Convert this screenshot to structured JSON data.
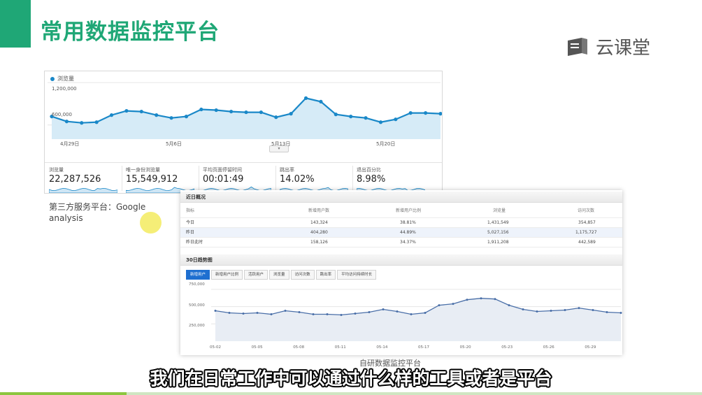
{
  "slide": {
    "title": "常用数据监控平台",
    "brand": "云课堂"
  },
  "ga": {
    "legend": "浏览量",
    "y_ticks": [
      "1,200,000",
      "600,000"
    ],
    "x_ticks": [
      "4月29日",
      "5月6日",
      "5月13日",
      "5月20日"
    ],
    "metrics": [
      {
        "label": "浏览量",
        "value": "22,287,526"
      },
      {
        "label": "唯一身份浏览量",
        "value": "15,549,912"
      },
      {
        "label": "平均页面停留时间",
        "value": "00:01:49"
      },
      {
        "label": "跳出率",
        "value": "14.02%"
      },
      {
        "label": "退出百分比",
        "value": "8.98%"
      }
    ],
    "caption_line1": "第三方服务平台：Google",
    "caption_line2": "analysis",
    "colors": {
      "line": "#1a88c8",
      "fill": "#d6ebf7"
    }
  },
  "ga_chart_data": {
    "type": "line",
    "xlabel": "",
    "ylabel": "",
    "ylim": [
      400000,
      1300000
    ],
    "x": [
      "4月29日",
      "4月30日",
      "5月1日",
      "5月2日",
      "5月3日",
      "5月4日",
      "5月5日",
      "5月6日",
      "5月7日",
      "5月8日",
      "5月9日",
      "5月10日",
      "5月11日",
      "5月12日",
      "5月13日",
      "5月14日",
      "5月15日",
      "5月16日",
      "5月17日",
      "5月18日",
      "5月19日",
      "5月20日",
      "5月21日",
      "5月22日",
      "5月23日",
      "5月24日",
      "5月25日"
    ],
    "series": [
      {
        "values": [
          720000,
          650000,
          630000,
          640000,
          740000,
          800000,
          790000,
          740000,
          700000,
          720000,
          820000,
          810000,
          790000,
          780000,
          780000,
          710000,
          760000,
          980000,
          930000,
          750000,
          720000,
          700000,
          640000,
          680000,
          770000,
          770000,
          760000
        ]
      }
    ]
  },
  "own": {
    "overview_title": "近日概况",
    "table": {
      "columns": [
        "指标",
        "新增用户数",
        "新增用户比例",
        "浏览量",
        "访问次数"
      ],
      "rows": [
        [
          "今日",
          "143,324",
          "38.81%",
          "1,431,549",
          "354,857"
        ],
        [
          "昨日",
          "404,280",
          "44.89%",
          "5,027,156",
          "1,175,727"
        ],
        [
          "昨日此时",
          "158,126",
          "34.37%",
          "1,911,208",
          "442,589"
        ]
      ]
    },
    "trend_title": "30日趋势图",
    "tabs": [
      "新增用户",
      "新增用户比例",
      "活跃用户",
      "浏览量",
      "访问次数",
      "跳出率",
      "平均访问持续时长"
    ],
    "active_tab": 0,
    "y_ticks": [
      "750,000",
      "500,000",
      "250,000"
    ],
    "x_ticks": [
      "05-02",
      "05-05",
      "05-08",
      "05-11",
      "05-14",
      "05-17",
      "05-20",
      "05-23",
      "05-26",
      "05-29"
    ],
    "caption": "自研数据监控平台",
    "colors": {
      "line": "#4a6fa8",
      "fill": "#e8edf4",
      "tab_active": "#1e6fd0"
    }
  },
  "own_chart_data": {
    "type": "line",
    "xlabel": "",
    "ylabel": "",
    "ylim": [
      0,
      850000
    ],
    "x": [
      "05-01",
      "05-02",
      "05-03",
      "05-04",
      "05-05",
      "05-06",
      "05-07",
      "05-08",
      "05-09",
      "05-10",
      "05-11",
      "05-12",
      "05-13",
      "05-14",
      "05-15",
      "05-16",
      "05-17",
      "05-18",
      "05-19",
      "05-20",
      "05-21",
      "05-22",
      "05-23",
      "05-24",
      "05-25",
      "05-26",
      "05-27",
      "05-28",
      "05-29",
      "05-30"
    ],
    "series": [
      {
        "values": [
          440000,
          410000,
          400000,
          410000,
          390000,
          440000,
          420000,
          390000,
          390000,
          380000,
          400000,
          420000,
          460000,
          430000,
          390000,
          410000,
          520000,
          540000,
          600000,
          620000,
          610000,
          520000,
          460000,
          430000,
          440000,
          450000,
          480000,
          450000,
          420000,
          410000
        ]
      }
    ]
  },
  "subtitle": "我们在日常工作中可以通过什么样的工具或者是平台",
  "progress": 0.18
}
